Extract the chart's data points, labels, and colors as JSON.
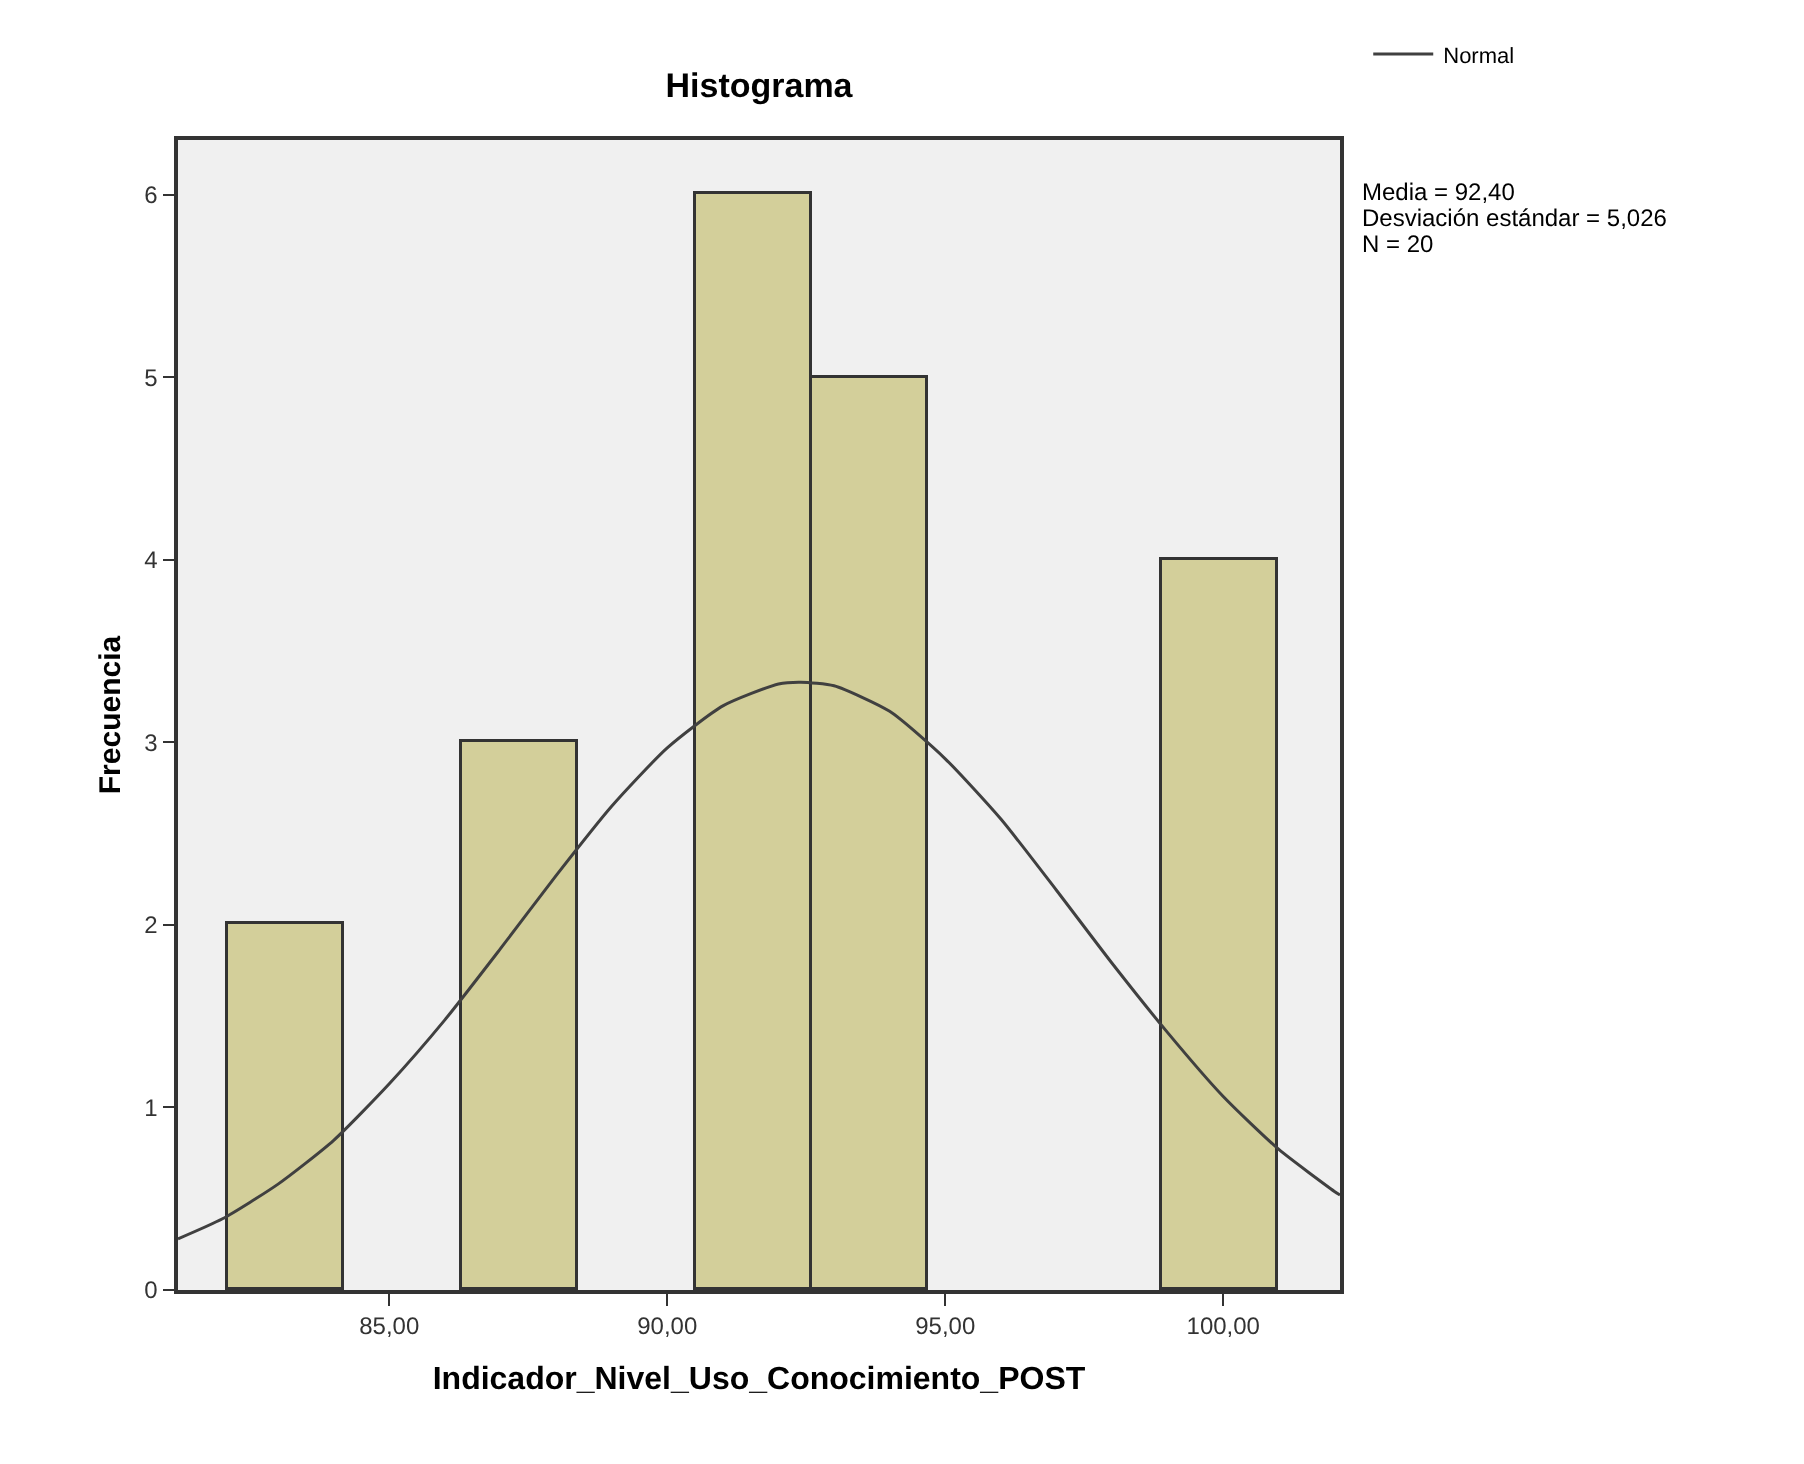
{
  "chart_data": {
    "type": "histogram",
    "title": "Histograma",
    "xlabel": "Indicador_Nivel_Uso_Conocimiento_POST",
    "ylabel": "Frecuencia",
    "bins": [
      82.1,
      84.2,
      86.3,
      88.4,
      90.5,
      92.6,
      94.7,
      96.8,
      98.9,
      101.0
    ],
    "values": [
      2,
      0,
      3,
      0,
      6,
      5,
      0,
      0,
      4
    ],
    "color": "#d3cf9a",
    "series": [
      {
        "type": "line",
        "name": "Normal",
        "color": "#404040",
        "x": [
          81.2,
          82,
          83,
          84,
          85,
          86,
          87,
          88,
          89,
          90,
          91,
          92,
          92.4,
          93,
          94,
          95,
          96,
          97,
          98,
          99,
          100,
          101,
          102,
          102.1
        ],
        "values": [
          0.28,
          0.39,
          0.58,
          0.82,
          1.13,
          1.48,
          1.87,
          2.27,
          2.65,
          2.97,
          3.2,
          3.32,
          3.33,
          3.31,
          3.17,
          2.91,
          2.58,
          2.19,
          1.79,
          1.41,
          1.06,
          0.77,
          0.54,
          0.52
        ]
      }
    ],
    "xlim": [
      81.2,
      102.1
    ],
    "xticks": [
      {
        "value": 85,
        "label": "85,00"
      },
      {
        "value": 90,
        "label": "90,00"
      },
      {
        "value": 95,
        "label": "95,00"
      },
      {
        "value": 100,
        "label": "100,00"
      }
    ],
    "ylim": [
      0,
      6.3
    ],
    "yticks": [
      0,
      1,
      2,
      3,
      4,
      5,
      6
    ],
    "grid": false,
    "legend": "top right",
    "annotations": [
      "Media = 92,40",
      "Desviación estándar = 5,026",
      "N = 20"
    ]
  }
}
